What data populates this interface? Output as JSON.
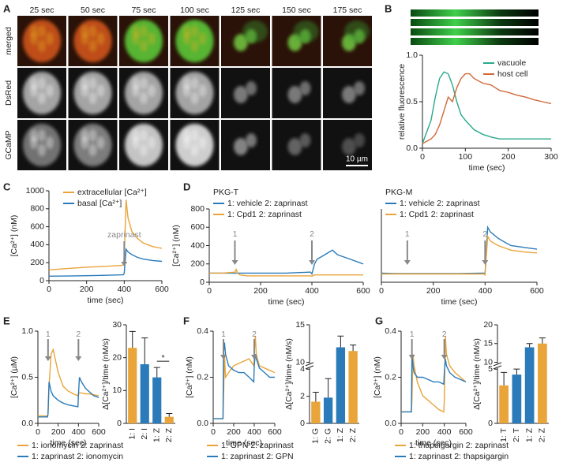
{
  "panel_labels": [
    "A",
    "B",
    "C",
    "D",
    "E",
    "F",
    "G"
  ],
  "panel_a": {
    "time_labels": [
      "25 sec",
      "50 sec",
      "75 sec",
      "100 sec",
      "125 sec",
      "150 sec",
      "175 sec"
    ],
    "row_labels": [
      "merged",
      "DsRed",
      "GCaMP"
    ],
    "scale_bar": "10 µm"
  },
  "chart_data": [
    {
      "type": "line",
      "ylabel": "relative fluorescence",
      "xlabel": "time (sec)",
      "x": [
        0,
        20,
        30,
        40,
        50,
        60,
        70,
        80,
        90,
        100,
        110,
        120,
        140,
        160,
        180,
        200,
        220,
        240,
        260,
        280,
        300
      ],
      "series": [
        {
          "name": "vacuole",
          "color": "#2aa88a",
          "values": [
            0.05,
            0.3,
            0.55,
            0.75,
            0.82,
            0.8,
            0.68,
            0.5,
            0.36,
            0.3,
            0.25,
            0.2,
            0.15,
            0.12,
            0.1,
            0.1,
            0.1,
            0.1,
            0.1,
            0.1,
            0.1
          ]
        },
        {
          "name": "host cell",
          "color": "#d2683a",
          "values": [
            0.05,
            0.1,
            0.15,
            0.25,
            0.4,
            0.55,
            0.5,
            0.65,
            0.75,
            0.8,
            0.8,
            0.75,
            0.7,
            0.68,
            0.62,
            0.6,
            0.57,
            0.55,
            0.52,
            0.5,
            0.48
          ]
        }
      ],
      "xlim": [
        0,
        300
      ],
      "xticks": [
        0,
        100,
        200,
        300
      ],
      "ylim": [
        0,
        1
      ],
      "yticks": [
        {
          "value": 0,
          "label": "0.0"
        },
        {
          "value": 0.5,
          "label": "0.5"
        },
        {
          "value": 1,
          "label": "1.0"
        }
      ]
    },
    {
      "type": "line",
      "ylabel": "[Ca²⁺] (nM)",
      "xlabel": "time (sec)",
      "x": [
        0,
        100,
        200,
        300,
        390,
        395,
        400,
        410,
        420,
        440,
        470,
        500,
        550,
        600
      ],
      "series": [
        {
          "name": "extracellular [Ca²⁺]",
          "color": "#e9a43a",
          "values": [
            120,
            135,
            150,
            160,
            170,
            180,
            250,
            900,
            700,
            550,
            470,
            420,
            380,
            360
          ]
        },
        {
          "name": "basal [Ca²⁺]",
          "color": "#2b7bba",
          "values": [
            50,
            52,
            55,
            60,
            65,
            65,
            80,
            350,
            320,
            290,
            260,
            240,
            225,
            215
          ]
        }
      ],
      "annotations": [
        {
          "text": "zaprinast",
          "x": 400
        }
      ],
      "xlim": [
        0,
        600
      ],
      "xticks": [
        0,
        200,
        400,
        600
      ],
      "ylim": [
        0,
        1000
      ],
      "yticks": [
        0,
        200,
        400,
        600,
        800,
        1000
      ]
    },
    {
      "type": "line",
      "title": "PKG-T",
      "ylabel": "[Ca²⁺] (nM)",
      "xlabel": "time (sec)",
      "x": [
        0,
        50,
        100,
        105,
        110,
        120,
        150,
        200,
        300,
        390,
        395,
        400,
        410,
        420,
        450,
        480,
        500,
        550,
        600
      ],
      "series": [
        {
          "name": "1: vehicle 2: zaprinast",
          "color": "#2b7bba",
          "values": [
            100,
            100,
            100,
            100,
            100,
            100,
            100,
            100,
            100,
            110,
            110,
            90,
            200,
            250,
            300,
            350,
            300,
            250,
            200
          ]
        },
        {
          "name": "1: Cpd1 2: zaprinast",
          "color": "#e9a43a",
          "values": [
            100,
            100,
            110,
            140,
            100,
            80,
            70,
            70,
            70,
            70,
            70,
            65,
            80,
            80,
            80,
            80,
            80,
            80,
            80
          ]
        }
      ],
      "annotations": [
        {
          "text": "1",
          "x": 100
        },
        {
          "text": "2",
          "x": 400
        }
      ],
      "xlim": [
        0,
        600
      ],
      "xticks": [
        0,
        200,
        400,
        600
      ],
      "ylim": [
        0,
        800
      ],
      "yticks": [
        0,
        200,
        400,
        600,
        800
      ]
    },
    {
      "type": "line",
      "title": "PKG-M",
      "xlabel": "time (sec)",
      "x": [
        0,
        50,
        100,
        105,
        110,
        120,
        150,
        200,
        300,
        390,
        395,
        400,
        410,
        420,
        450,
        480,
        500,
        550,
        600
      ],
      "series": [
        {
          "name": "1: vehicle 2: zaprinast",
          "color": "#2b7bba",
          "values": [
            100,
            95,
            95,
            95,
            95,
            95,
            95,
            95,
            95,
            100,
            100,
            95,
            600,
            550,
            480,
            430,
            400,
            380,
            360
          ]
        },
        {
          "name": "1: Cpd1 2: zaprinast",
          "color": "#e9a43a",
          "values": [
            90,
            90,
            90,
            90,
            90,
            90,
            90,
            90,
            90,
            90,
            90,
            80,
            500,
            450,
            400,
            370,
            350,
            330,
            320
          ]
        }
      ],
      "annotations": [
        {
          "text": "1",
          "x": 100
        },
        {
          "text": "2",
          "x": 400
        }
      ],
      "xlim": [
        0,
        600
      ],
      "xticks": [
        0,
        200,
        400,
        600
      ],
      "ylim": [
        0,
        800
      ]
    },
    {
      "type": "line",
      "ylabel": "[Ca²⁺] (µM)",
      "xlabel": "time (sec)",
      "x": [
        0,
        95,
        100,
        110,
        130,
        150,
        200,
        250,
        300,
        350,
        395,
        400,
        410,
        430,
        470,
        500,
        550,
        600
      ],
      "series": [
        {
          "name": "1: ionomycin 2: zaprinast",
          "color": "#e9a43a",
          "values": [
            0.08,
            0.08,
            0.1,
            0.4,
            0.75,
            0.8,
            0.55,
            0.4,
            0.35,
            0.32,
            0.3,
            0.32,
            0.33,
            0.33,
            0.32,
            0.32,
            0.31,
            0.3
          ]
        },
        {
          "name": "1: zaprinast 2: ionomycin",
          "color": "#2b7bba",
          "values": [
            0.07,
            0.07,
            0.1,
            0.45,
            0.35,
            0.3,
            0.25,
            0.22,
            0.2,
            0.19,
            0.18,
            0.3,
            0.5,
            0.45,
            0.38,
            0.35,
            0.3,
            0.28
          ]
        }
      ],
      "annotations": [
        {
          "text": "1",
          "x": 100
        },
        {
          "text": "2",
          "x": 400
        }
      ],
      "xlim": [
        0,
        600
      ],
      "xticks": [
        0,
        200,
        400,
        600
      ],
      "ylim": [
        0,
        1
      ],
      "yticks": [
        {
          "value": 0,
          "label": "0.0"
        },
        {
          "value": 0.5,
          "label": "0.5"
        },
        {
          "value": 1,
          "label": "1.0"
        }
      ]
    },
    {
      "type": "bar",
      "ylabel": "Δ[Ca²⁺]/time (nM/s)",
      "categories": [
        "1: I",
        "2: I",
        "1: Z",
        "2: Z"
      ],
      "values": [
        23,
        18,
        14,
        2
      ],
      "errors": [
        5,
        8,
        3,
        1
      ],
      "colors": [
        "#e9a43a",
        "#2b7bba",
        "#2b7bba",
        "#e9a43a"
      ],
      "annotation": "*",
      "ylim": [
        0,
        30
      ],
      "yticks": [
        0,
        10,
        20,
        30
      ]
    },
    {
      "type": "line",
      "ylabel": "[Ca²⁺] (nM)",
      "xlabel": "time (sec)",
      "x": [
        0,
        95,
        100,
        110,
        120,
        150,
        200,
        250,
        300,
        350,
        395,
        400,
        410,
        420,
        450,
        500,
        550,
        600
      ],
      "series": [
        {
          "name": "1: GPN 2: zaprinast",
          "color": "#e9a43a",
          "values": [
            0.02,
            0.02,
            0.1,
            0.3,
            0.2,
            0.22,
            0.25,
            0.26,
            0.27,
            0.28,
            0.25,
            0.3,
            0.38,
            0.3,
            0.25,
            0.24,
            0.23,
            0.22
          ]
        },
        {
          "name": "1: zaprinast 2: GPN",
          "color": "#2b7bba",
          "values": [
            0.02,
            0.02,
            0.3,
            0.35,
            0.3,
            0.25,
            0.23,
            0.22,
            0.22,
            0.2,
            0.18,
            0.25,
            0.3,
            0.28,
            0.24,
            0.22,
            0.2,
            0.2
          ]
        }
      ],
      "annotations": [
        {
          "text": "1",
          "x": 100
        },
        {
          "text": "2",
          "x": 400
        }
      ],
      "xlim": [
        0,
        600
      ],
      "xticks": [
        0,
        200,
        400,
        600
      ],
      "ylim": [
        0,
        0.4
      ],
      "yticks": [
        {
          "value": 0,
          "label": "0.0"
        },
        {
          "value": 0.2,
          "label": "0.2"
        },
        {
          "value": 0.4,
          "label": "0.4"
        }
      ]
    },
    {
      "type": "bar",
      "ylabel": "Δ[Ca²⁺]/time (nM/s)",
      "categories": [
        "1: G",
        "2: G",
        "1: Z",
        "2: Z"
      ],
      "values": [
        1.6,
        1.9,
        12,
        11.5
      ],
      "errors": [
        0.7,
        1.4,
        1.5,
        0.8
      ],
      "colors": [
        "#e9a43a",
        "#2b7bba",
        "#2b7bba",
        "#e9a43a"
      ],
      "ylim": [
        0,
        15
      ],
      "ybreak": [
        4,
        10
      ],
      "yticks": [
        0,
        2,
        4,
        10,
        15
      ]
    },
    {
      "type": "line",
      "ylabel": "[Ca²⁺] (nM)",
      "xlabel": "time (sec)",
      "x": [
        0,
        95,
        100,
        110,
        120,
        150,
        200,
        250,
        300,
        350,
        395,
        400,
        410,
        420,
        450,
        500,
        550,
        600
      ],
      "series": [
        {
          "name": "1: thapsigargin 2: zaprinast",
          "color": "#e9a43a",
          "values": [
            0.05,
            0.05,
            0.1,
            0.3,
            0.25,
            0.18,
            0.12,
            0.1,
            0.08,
            0.06,
            0.05,
            0.1,
            0.38,
            0.3,
            0.25,
            0.22,
            0.2,
            0.18
          ]
        },
        {
          "name": "1: zaprinast 2: thapsigargin",
          "color": "#2b7bba",
          "values": [
            0.05,
            0.05,
            0.3,
            0.25,
            0.22,
            0.2,
            0.2,
            0.19,
            0.18,
            0.18,
            0.17,
            0.22,
            0.28,
            0.25,
            0.22,
            0.2,
            0.19,
            0.18
          ]
        }
      ],
      "annotations": [
        {
          "text": "1",
          "x": 100
        },
        {
          "text": "2",
          "x": 400
        }
      ],
      "xlim": [
        0,
        600
      ],
      "xticks": [
        0,
        200,
        400,
        600
      ],
      "ylim": [
        0,
        0.4
      ],
      "yticks": [
        {
          "value": 0,
          "label": "0.0"
        },
        {
          "value": 0.2,
          "label": "0.2"
        },
        {
          "value": 0.4,
          "label": "0.4"
        }
      ]
    },
    {
      "type": "bar",
      "ylabel": "Δ[Ca²⁺]/time (nM/s)",
      "categories": [
        "1: T",
        "2: T",
        "1: Z",
        "2: Z"
      ],
      "values": [
        3.5,
        4.5,
        14,
        15
      ],
      "errors": [
        1.2,
        0.6,
        1,
        1.5
      ],
      "colors": [
        "#e9a43a",
        "#2b7bba",
        "#2b7bba",
        "#e9a43a"
      ],
      "ylim": [
        0,
        20
      ],
      "ybreak": [
        5,
        10
      ],
      "yticks": [
        0,
        5,
        10,
        15,
        20
      ]
    }
  ]
}
